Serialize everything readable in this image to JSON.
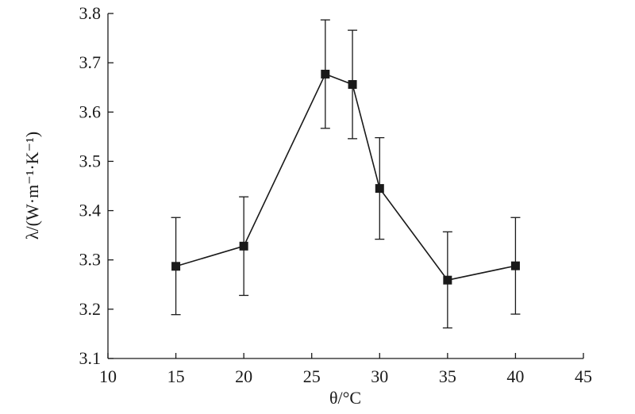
{
  "chart_data": {
    "type": "line",
    "title": "",
    "xlabel": "θ/°C",
    "ylabel": "λ/(W·m⁻¹·K⁻¹)",
    "xlim": [
      10,
      45
    ],
    "ylim": [
      3.1,
      3.8
    ],
    "xticks": [
      10,
      15,
      20,
      25,
      30,
      35,
      40,
      45
    ],
    "yticks": [
      3.1,
      3.2,
      3.3,
      3.4,
      3.5,
      3.6,
      3.7,
      3.8
    ],
    "xtick_labels": [
      "10",
      "15",
      "20",
      "25",
      "30",
      "35",
      "40",
      "45"
    ],
    "ytick_labels": [
      "3.1",
      "3.2",
      "3.3",
      "3.4",
      "3.5",
      "3.6",
      "3.7",
      "3.8"
    ],
    "grid": false,
    "marker": "square",
    "series": [
      {
        "x": [
          15,
          20,
          26,
          28,
          30,
          35,
          40
        ],
        "y": [
          3.287,
          3.328,
          3.677,
          3.656,
          3.445,
          3.259,
          3.288
        ],
        "error_upper": [
          3.386,
          3.428,
          3.787,
          3.766,
          3.548,
          3.357,
          3.386
        ],
        "error_lower": [
          3.189,
          3.228,
          3.567,
          3.546,
          3.342,
          3.162,
          3.19
        ]
      }
    ],
    "colors": {
      "line": "#1a1a1a",
      "marker": "#1a1a1a",
      "axis": "#1a1a1a"
    }
  }
}
